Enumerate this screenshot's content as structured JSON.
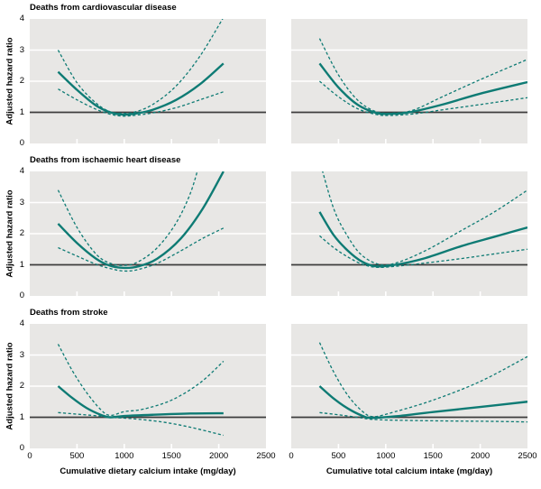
{
  "figure": {
    "row_titles": [
      "Deaths from cardiovascular disease",
      "Deaths from ischaemic heart disease",
      "Deaths from stroke"
    ],
    "ylabel": "Adjusted hazard ratio",
    "xlabels": [
      "Cumulative dietary calcium intake (mg/day)",
      "Cumulative total calcium intake (mg/day)"
    ],
    "y_ticks": [
      0,
      1,
      2,
      3,
      4
    ],
    "x_ticks": [
      0,
      500,
      1000,
      1500,
      2000,
      2500
    ],
    "gridlines_y": [
      2,
      3
    ],
    "x_tick_marks": [
      500,
      1000,
      1500,
      2000
    ],
    "reference_line_y": 1,
    "colors": {
      "series": "#0e7b74",
      "panel_background": "#e8e7e5",
      "gridline": "#ffffff",
      "reference_line": "#3d3d3d",
      "text": "#000000"
    }
  },
  "chart_data": [
    {
      "type": "line",
      "row": 0,
      "col": 0,
      "title": "Deaths from cardiovascular disease",
      "xlabel": "Cumulative dietary calcium intake (mg/day)",
      "ylabel": "Adjusted hazard ratio",
      "xlim": [
        0,
        2500
      ],
      "ylim": [
        0,
        4
      ],
      "reference_line_y": 1,
      "series": [
        {
          "name": "adjusted hazard ratio",
          "style": "solid",
          "points": [
            [
              300,
              2.3
            ],
            [
              500,
              1.72
            ],
            [
              700,
              1.22
            ],
            [
              850,
              1.0
            ],
            [
              975,
              0.93
            ],
            [
              1100,
              0.95
            ],
            [
              1300,
              1.08
            ],
            [
              1550,
              1.4
            ],
            [
              1800,
              1.9
            ],
            [
              2050,
              2.57
            ]
          ]
        },
        {
          "name": "upper 95% confidence limit",
          "style": "dashed",
          "points": [
            [
              300,
              3.0
            ],
            [
              500,
              1.95
            ],
            [
              700,
              1.3
            ],
            [
              850,
              1.02
            ],
            [
              975,
              0.97
            ],
            [
              1100,
              1.0
            ],
            [
              1300,
              1.25
            ],
            [
              1550,
              1.85
            ],
            [
              1800,
              2.8
            ],
            [
              2050,
              4.05
            ]
          ]
        },
        {
          "name": "lower 95% confidence limit",
          "style": "dashed",
          "points": [
            [
              300,
              1.75
            ],
            [
              500,
              1.4
            ],
            [
              700,
              1.1
            ],
            [
              850,
              0.94
            ],
            [
              975,
              0.88
            ],
            [
              1100,
              0.9
            ],
            [
              1300,
              0.98
            ],
            [
              1550,
              1.15
            ],
            [
              1800,
              1.4
            ],
            [
              2050,
              1.66
            ]
          ]
        }
      ]
    },
    {
      "type": "line",
      "row": 0,
      "col": 1,
      "title": "",
      "xlabel": "Cumulative total calcium intake (mg/day)",
      "ylabel": "Adjusted hazard ratio",
      "xlim": [
        0,
        2500
      ],
      "ylim": [
        0,
        4
      ],
      "reference_line_y": 1,
      "series": [
        {
          "name": "adjusted hazard ratio",
          "style": "solid",
          "points": [
            [
              300,
              2.57
            ],
            [
              500,
              1.8
            ],
            [
              700,
              1.25
            ],
            [
              900,
              0.98
            ],
            [
              1050,
              0.95
            ],
            [
              1250,
              1.0
            ],
            [
              1600,
              1.25
            ],
            [
              2000,
              1.6
            ],
            [
              2500,
              1.97
            ]
          ]
        },
        {
          "name": "upper 95% confidence limit",
          "style": "dashed",
          "points": [
            [
              300,
              3.37
            ],
            [
              500,
              2.2
            ],
            [
              700,
              1.4
            ],
            [
              900,
              1.02
            ],
            [
              1100,
              0.98
            ],
            [
              1300,
              1.08
            ],
            [
              1600,
              1.5
            ],
            [
              2000,
              2.05
            ],
            [
              2500,
              2.7
            ]
          ]
        },
        {
          "name": "lower 95% confidence limit",
          "style": "dashed",
          "points": [
            [
              300,
              2.0
            ],
            [
              500,
              1.5
            ],
            [
              700,
              1.12
            ],
            [
              900,
              0.93
            ],
            [
              1050,
              0.9
            ],
            [
              1300,
              0.95
            ],
            [
              1600,
              1.08
            ],
            [
              2000,
              1.25
            ],
            [
              2500,
              1.47
            ]
          ]
        }
      ]
    },
    {
      "type": "line",
      "row": 1,
      "col": 0,
      "title": "Deaths from ischaemic heart disease",
      "xlabel": "Cumulative dietary calcium intake (mg/day)",
      "ylabel": "Adjusted hazard ratio",
      "xlim": [
        0,
        2500
      ],
      "ylim": [
        0,
        4
      ],
      "reference_line_y": 1,
      "series": [
        {
          "name": "adjusted hazard ratio",
          "style": "solid",
          "points": [
            [
              300,
              2.32
            ],
            [
              500,
              1.7
            ],
            [
              700,
              1.2
            ],
            [
              850,
              0.97
            ],
            [
              1000,
              0.9
            ],
            [
              1150,
              0.95
            ],
            [
              1350,
              1.2
            ],
            [
              1600,
              1.85
            ],
            [
              1830,
              2.8
            ],
            [
              2050,
              4.0
            ]
          ]
        },
        {
          "name": "upper 95% confidence limit",
          "style": "dashed",
          "points": [
            [
              300,
              3.4
            ],
            [
              500,
              2.2
            ],
            [
              700,
              1.35
            ],
            [
              850,
              1.05
            ],
            [
              1000,
              0.98
            ],
            [
              1150,
              1.1
            ],
            [
              1350,
              1.55
            ],
            [
              1550,
              2.35
            ],
            [
              1700,
              3.3
            ],
            [
              1800,
              4.3
            ]
          ]
        },
        {
          "name": "lower 95% confidence limit",
          "style": "dashed",
          "points": [
            [
              300,
              1.55
            ],
            [
              500,
              1.28
            ],
            [
              700,
              1.02
            ],
            [
              850,
              0.88
            ],
            [
              1000,
              0.8
            ],
            [
              1150,
              0.85
            ],
            [
              1350,
              1.05
            ],
            [
              1600,
              1.45
            ],
            [
              1830,
              1.85
            ],
            [
              2050,
              2.18
            ]
          ]
        }
      ]
    },
    {
      "type": "line",
      "row": 1,
      "col": 1,
      "title": "",
      "xlabel": "Cumulative total calcium intake (mg/day)",
      "ylabel": "Adjusted hazard ratio",
      "xlim": [
        0,
        2500
      ],
      "ylim": [
        0,
        4
      ],
      "reference_line_y": 1,
      "series": [
        {
          "name": "adjusted hazard ratio",
          "style": "solid",
          "points": [
            [
              300,
              2.7
            ],
            [
              450,
              1.95
            ],
            [
              600,
              1.45
            ],
            [
              750,
              1.1
            ],
            [
              900,
              0.95
            ],
            [
              1100,
              1.0
            ],
            [
              1400,
              1.2
            ],
            [
              1800,
              1.6
            ],
            [
              2150,
              1.9
            ],
            [
              2500,
              2.2
            ]
          ]
        },
        {
          "name": "upper 95% confidence limit",
          "style": "dashed",
          "points": [
            [
              300,
              4.35
            ],
            [
              450,
              2.8
            ],
            [
              600,
              1.9
            ],
            [
              750,
              1.3
            ],
            [
              950,
              1.0
            ],
            [
              1150,
              1.1
            ],
            [
              1450,
              1.5
            ],
            [
              1800,
              2.1
            ],
            [
              2150,
              2.7
            ],
            [
              2500,
              3.4
            ]
          ]
        },
        {
          "name": "lower 95% confidence limit",
          "style": "dashed",
          "points": [
            [
              300,
              1.93
            ],
            [
              450,
              1.55
            ],
            [
              600,
              1.25
            ],
            [
              750,
              1.02
            ],
            [
              900,
              0.92
            ],
            [
              1100,
              0.95
            ],
            [
              1400,
              1.05
            ],
            [
              1800,
              1.2
            ],
            [
              2150,
              1.35
            ],
            [
              2500,
              1.5
            ]
          ]
        }
      ]
    },
    {
      "type": "line",
      "row": 2,
      "col": 0,
      "title": "Deaths from stroke",
      "xlabel": "Cumulative dietary calcium intake (mg/day)",
      "ylabel": "Adjusted hazard ratio",
      "xlim": [
        0,
        2500
      ],
      "ylim": [
        0,
        4
      ],
      "reference_line_y": 1,
      "series": [
        {
          "name": "adjusted hazard ratio",
          "style": "solid",
          "points": [
            [
              300,
              2.0
            ],
            [
              450,
              1.62
            ],
            [
              600,
              1.3
            ],
            [
              750,
              1.08
            ],
            [
              850,
              1.0
            ],
            [
              1000,
              1.04
            ],
            [
              1300,
              1.08
            ],
            [
              1700,
              1.12
            ],
            [
              2050,
              1.13
            ]
          ]
        },
        {
          "name": "upper 95% confidence limit",
          "style": "dashed",
          "points": [
            [
              300,
              3.35
            ],
            [
              450,
              2.5
            ],
            [
              600,
              1.8
            ],
            [
              750,
              1.25
            ],
            [
              850,
              1.06
            ],
            [
              1000,
              1.18
            ],
            [
              1200,
              1.26
            ],
            [
              1500,
              1.55
            ],
            [
              1800,
              2.1
            ],
            [
              2050,
              2.8
            ]
          ]
        },
        {
          "name": "lower 95% confidence limit",
          "style": "dashed",
          "points": [
            [
              300,
              1.15
            ],
            [
              500,
              1.1
            ],
            [
              700,
              1.05
            ],
            [
              850,
              1.0
            ],
            [
              1100,
              0.95
            ],
            [
              1400,
              0.85
            ],
            [
              1700,
              0.68
            ],
            [
              2050,
              0.42
            ]
          ]
        }
      ]
    },
    {
      "type": "line",
      "row": 2,
      "col": 1,
      "title": "",
      "xlabel": "Cumulative total calcium intake (mg/day)",
      "ylabel": "Adjusted hazard ratio",
      "xlim": [
        0,
        2500
      ],
      "ylim": [
        0,
        4
      ],
      "reference_line_y": 1,
      "series": [
        {
          "name": "adjusted hazard ratio",
          "style": "solid",
          "points": [
            [
              300,
              2.0
            ],
            [
              450,
              1.6
            ],
            [
              600,
              1.28
            ],
            [
              750,
              1.05
            ],
            [
              850,
              0.98
            ],
            [
              1100,
              1.03
            ],
            [
              1500,
              1.17
            ],
            [
              2000,
              1.33
            ],
            [
              2500,
              1.5
            ]
          ]
        },
        {
          "name": "upper 95% confidence limit",
          "style": "dashed",
          "points": [
            [
              300,
              3.4
            ],
            [
              450,
              2.45
            ],
            [
              600,
              1.7
            ],
            [
              750,
              1.2
            ],
            [
              870,
              1.02
            ],
            [
              1100,
              1.18
            ],
            [
              1500,
              1.55
            ],
            [
              2000,
              2.15
            ],
            [
              2500,
              2.95
            ]
          ]
        },
        {
          "name": "lower 95% confidence limit",
          "style": "dashed",
          "points": [
            [
              300,
              1.15
            ],
            [
              500,
              1.08
            ],
            [
              700,
              1.0
            ],
            [
              870,
              0.93
            ],
            [
              1200,
              0.9
            ],
            [
              1700,
              0.88
            ],
            [
              2100,
              0.87
            ],
            [
              2500,
              0.85
            ]
          ]
        }
      ]
    }
  ]
}
